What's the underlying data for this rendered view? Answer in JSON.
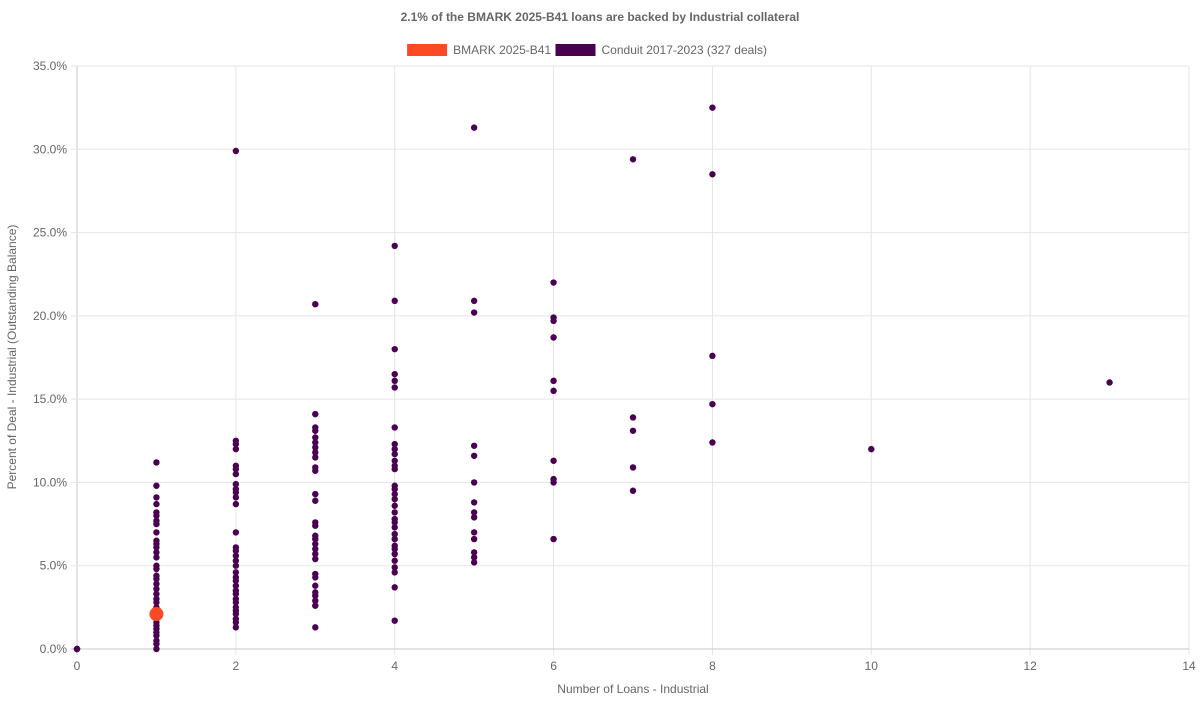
{
  "chart_data": {
    "type": "scatter",
    "title": "2.1% of the BMARK 2025-B41 loans are backed by Industrial collateral",
    "xlabel": "Number of Loans - Industrial",
    "ylabel": "Percent of Deal - Industrial (Outstanding Balance)",
    "xlim": [
      0,
      14
    ],
    "ylim": [
      0,
      35
    ],
    "x_ticks": [
      0,
      2,
      4,
      6,
      8,
      10,
      12,
      14
    ],
    "x_tick_labels": [
      "0",
      "2",
      "4",
      "6",
      "8",
      "10",
      "12",
      "14"
    ],
    "y_ticks": [
      0,
      5,
      10,
      15,
      20,
      25,
      30,
      35
    ],
    "y_tick_labels": [
      "0.0%",
      "5.0%",
      "10.0%",
      "15.0%",
      "20.0%",
      "25.0%",
      "30.0%",
      "35.0%"
    ],
    "grid": true,
    "legend_position": "top-center",
    "series": [
      {
        "name": "BMARK 2025-B41",
        "color": "#fc4a25",
        "points": [
          [
            1,
            2.1
          ]
        ]
      },
      {
        "name": "Conduit 2017-2023 (327 deals)",
        "color": "#4a0051",
        "points": [
          [
            0,
            0
          ],
          [
            0,
            0
          ],
          [
            0,
            0
          ],
          [
            1,
            0
          ],
          [
            1,
            0.3
          ],
          [
            1,
            0.5
          ],
          [
            1,
            0.8
          ],
          [
            1,
            1.0
          ],
          [
            1,
            1.2
          ],
          [
            1,
            1.4
          ],
          [
            1,
            1.6
          ],
          [
            1,
            1.8
          ],
          [
            1,
            2.0
          ],
          [
            1,
            2.3
          ],
          [
            1,
            2.5
          ],
          [
            1,
            2.8
          ],
          [
            1,
            3.0
          ],
          [
            1,
            3.3
          ],
          [
            1,
            3.6
          ],
          [
            1,
            3.9
          ],
          [
            1,
            4.2
          ],
          [
            1,
            4.4
          ],
          [
            1,
            4.8
          ],
          [
            1,
            5.0
          ],
          [
            1,
            5.5
          ],
          [
            1,
            5.8
          ],
          [
            1,
            6.1
          ],
          [
            1,
            6.3
          ],
          [
            1,
            6.5
          ],
          [
            1,
            7.0
          ],
          [
            1,
            7.5
          ],
          [
            1,
            7.7
          ],
          [
            1,
            8.0
          ],
          [
            1,
            8.2
          ],
          [
            1,
            8.7
          ],
          [
            1,
            9.1
          ],
          [
            1,
            9.8
          ],
          [
            1,
            11.2
          ],
          [
            2,
            1.3
          ],
          [
            2,
            1.6
          ],
          [
            2,
            1.8
          ],
          [
            2,
            2.1
          ],
          [
            2,
            2.3
          ],
          [
            2,
            2.5
          ],
          [
            2,
            2.8
          ],
          [
            2,
            3.0
          ],
          [
            2,
            3.3
          ],
          [
            2,
            3.5
          ],
          [
            2,
            3.8
          ],
          [
            2,
            4.1
          ],
          [
            2,
            4.3
          ],
          [
            2,
            4.6
          ],
          [
            2,
            5.0
          ],
          [
            2,
            5.3
          ],
          [
            2,
            5.6
          ],
          [
            2,
            5.9
          ],
          [
            2,
            6.1
          ],
          [
            2,
            7.0
          ],
          [
            2,
            8.7
          ],
          [
            2,
            9.1
          ],
          [
            2,
            9.4
          ],
          [
            2,
            9.6
          ],
          [
            2,
            9.9
          ],
          [
            2,
            10.5
          ],
          [
            2,
            10.8
          ],
          [
            2,
            11.0
          ],
          [
            2,
            12.0
          ],
          [
            2,
            12.3
          ],
          [
            2,
            12.5
          ],
          [
            2,
            29.9
          ],
          [
            3,
            1.3
          ],
          [
            3,
            2.6
          ],
          [
            3,
            2.9
          ],
          [
            3,
            3.2
          ],
          [
            3,
            3.4
          ],
          [
            3,
            3.8
          ],
          [
            3,
            4.3
          ],
          [
            3,
            4.5
          ],
          [
            3,
            5.4
          ],
          [
            3,
            5.7
          ],
          [
            3,
            6.0
          ],
          [
            3,
            6.3
          ],
          [
            3,
            6.6
          ],
          [
            3,
            6.8
          ],
          [
            3,
            7.4
          ],
          [
            3,
            7.6
          ],
          [
            3,
            8.9
          ],
          [
            3,
            9.3
          ],
          [
            3,
            10.7
          ],
          [
            3,
            10.9
          ],
          [
            3,
            11.5
          ],
          [
            3,
            11.8
          ],
          [
            3,
            12.1
          ],
          [
            3,
            12.4
          ],
          [
            3,
            12.7
          ],
          [
            3,
            13.1
          ],
          [
            3,
            13.3
          ],
          [
            3,
            14.1
          ],
          [
            3,
            20.7
          ],
          [
            4,
            1.7
          ],
          [
            4,
            3.7
          ],
          [
            4,
            4.6
          ],
          [
            4,
            4.9
          ],
          [
            4,
            5.3
          ],
          [
            4,
            5.7
          ],
          [
            4,
            6.0
          ],
          [
            4,
            6.2
          ],
          [
            4,
            6.6
          ],
          [
            4,
            6.9
          ],
          [
            4,
            7.3
          ],
          [
            4,
            7.6
          ],
          [
            4,
            7.8
          ],
          [
            4,
            8.2
          ],
          [
            4,
            8.6
          ],
          [
            4,
            9.0
          ],
          [
            4,
            9.3
          ],
          [
            4,
            9.6
          ],
          [
            4,
            9.8
          ],
          [
            4,
            10.8
          ],
          [
            4,
            11.0
          ],
          [
            4,
            11.3
          ],
          [
            4,
            11.7
          ],
          [
            4,
            12.0
          ],
          [
            4,
            12.3
          ],
          [
            4,
            13.3
          ],
          [
            4,
            15.7
          ],
          [
            4,
            16.1
          ],
          [
            4,
            16.5
          ],
          [
            4,
            18.0
          ],
          [
            4,
            20.9
          ],
          [
            4,
            24.2
          ],
          [
            5,
            5.2
          ],
          [
            5,
            5.5
          ],
          [
            5,
            5.8
          ],
          [
            5,
            6.6
          ],
          [
            5,
            7.0
          ],
          [
            5,
            7.9
          ],
          [
            5,
            8.2
          ],
          [
            5,
            8.8
          ],
          [
            5,
            10.0
          ],
          [
            5,
            11.6
          ],
          [
            5,
            12.2
          ],
          [
            5,
            20.2
          ],
          [
            5,
            20.9
          ],
          [
            5,
            31.3
          ],
          [
            6,
            6.6
          ],
          [
            6,
            10.0
          ],
          [
            6,
            10.2
          ],
          [
            6,
            11.3
          ],
          [
            6,
            15.5
          ],
          [
            6,
            16.1
          ],
          [
            6,
            18.7
          ],
          [
            6,
            19.7
          ],
          [
            6,
            19.9
          ],
          [
            6,
            22.0
          ],
          [
            7,
            9.5
          ],
          [
            7,
            10.9
          ],
          [
            7,
            13.1
          ],
          [
            7,
            13.9
          ],
          [
            7,
            29.4
          ],
          [
            8,
            12.4
          ],
          [
            8,
            14.7
          ],
          [
            8,
            17.6
          ],
          [
            8,
            28.5
          ],
          [
            8,
            32.5
          ],
          [
            10,
            12.0
          ],
          [
            13,
            16.0
          ]
        ]
      }
    ]
  }
}
